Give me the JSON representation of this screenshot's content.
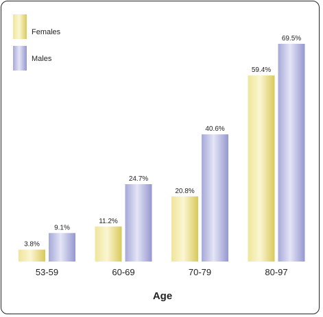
{
  "chart_data": {
    "type": "bar",
    "title": "",
    "xlabel": "Age",
    "ylabel": "",
    "categories": [
      "53-59",
      "60-69",
      "70-79",
      "80-97"
    ],
    "series": [
      {
        "name": "Females",
        "values": [
          3.8,
          11.2,
          20.8,
          59.4
        ],
        "value_labels": [
          "3.8%",
          "11.2%",
          "20.8%",
          "59.4%"
        ],
        "color": "#e6d97a"
      },
      {
        "name": "Males",
        "values": [
          9.1,
          24.7,
          40.6,
          69.5
        ],
        "value_labels": [
          "9.1%",
          "24.7%",
          "40.6%",
          "69.5%"
        ],
        "color": "#aeb0dd"
      }
    ],
    "ylim": [
      0,
      69.5
    ],
    "grid": false,
    "legend": "top-left"
  }
}
